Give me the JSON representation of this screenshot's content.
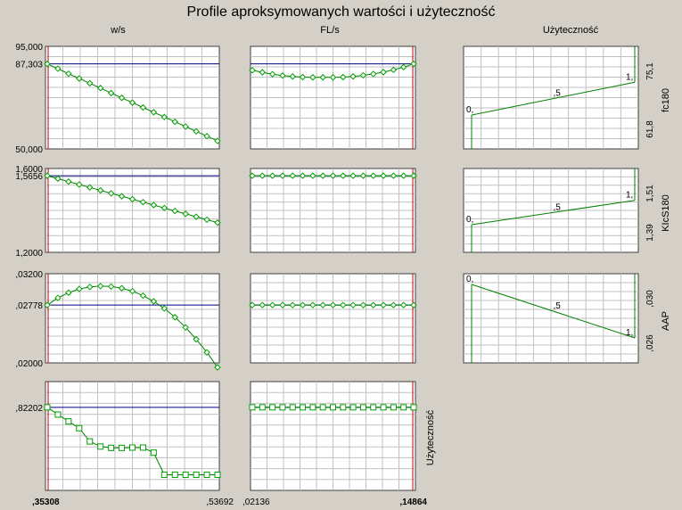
{
  "title": "Profile aproksymowanych wartości i użyteczność",
  "column_headers": [
    "w/s",
    "FL/s",
    "Użyteczność"
  ],
  "bottom_axis": {
    "ws": {
      "min_label": ",35308",
      "max_label": ",53692"
    },
    "fls": {
      "min_label": ",02136",
      "max_label": ",14864"
    }
  },
  "colors": {
    "background": "#d4d0c8",
    "series": "#008000",
    "marker": "#00a000",
    "current_h": "#000080",
    "current_v": "#c00000",
    "grid": "#c0c0c0"
  },
  "chart_data": [
    {
      "type": "line",
      "row": "fc180",
      "column": "w/s",
      "x": [
        0.35308,
        0.36457,
        0.37606,
        0.38755,
        0.39904,
        0.41053,
        0.42202,
        0.43351,
        0.445,
        0.45649,
        0.46798,
        0.47947,
        0.49096,
        0.50245,
        0.51394,
        0.52543,
        0.53692
      ],
      "y": [
        87.303,
        85.2,
        83.0,
        80.9,
        78.8,
        76.7,
        74.5,
        72.4,
        70.3,
        68.2,
        66.1,
        64.0,
        61.9,
        59.8,
        57.7,
        55.6,
        53.5
      ],
      "current": 87.303,
      "ylim": [
        50.0,
        95.0
      ],
      "ytick_labels": [
        "95,000",
        "87,303",
        "50,000"
      ]
    },
    {
      "type": "line",
      "row": "fc180",
      "column": "FL/s",
      "x": [
        0.02136,
        0.02932,
        0.03727,
        0.04523,
        0.05318,
        0.06114,
        0.0691,
        0.07705,
        0.085,
        0.09296,
        0.10091,
        0.10887,
        0.11682,
        0.12478,
        0.13273,
        0.14069,
        0.14864
      ],
      "y": [
        84.5,
        83.6,
        82.8,
        82.2,
        81.8,
        81.5,
        81.4,
        81.4,
        81.4,
        81.5,
        81.8,
        82.3,
        82.9,
        83.7,
        84.7,
        85.9,
        87.303
      ],
      "current": 87.303,
      "ylim": [
        50.0,
        95.0
      ]
    },
    {
      "type": "line",
      "row": "KIcS180",
      "column": "w/s",
      "x": [
        0.35308,
        0.36457,
        0.37606,
        0.38755,
        0.39904,
        0.41053,
        0.42202,
        0.43351,
        0.445,
        0.45649,
        0.46798,
        0.47947,
        0.49096,
        0.50245,
        0.51394,
        0.52543,
        0.53692
      ],
      "y": [
        1.5656,
        1.5516,
        1.5376,
        1.5236,
        1.5096,
        1.4956,
        1.4816,
        1.4676,
        1.4536,
        1.4396,
        1.4256,
        1.4116,
        1.3976,
        1.3836,
        1.3696,
        1.3556,
        1.3416
      ],
      "current": 1.5656,
      "ylim": [
        1.2,
        1.6
      ],
      "ytick_labels": [
        "1,6000",
        "1,5656",
        "1,2000"
      ]
    },
    {
      "type": "line",
      "row": "KIcS180",
      "column": "FL/s",
      "x": [
        0.02136,
        0.02932,
        0.03727,
        0.04523,
        0.05318,
        0.06114,
        0.0691,
        0.07705,
        0.085,
        0.09296,
        0.10091,
        0.10887,
        0.11682,
        0.12478,
        0.13273,
        0.14069,
        0.14864
      ],
      "y": [
        1.5656,
        1.5656,
        1.5656,
        1.5656,
        1.5656,
        1.5656,
        1.5656,
        1.5656,
        1.5656,
        1.5656,
        1.5656,
        1.5656,
        1.5656,
        1.5656,
        1.5656,
        1.5656,
        1.5656
      ],
      "current": 1.5656,
      "ylim": [
        1.2,
        1.6
      ]
    },
    {
      "type": "line",
      "row": "AAP",
      "column": "w/s",
      "x": [
        0.35308,
        0.36457,
        0.37606,
        0.38755,
        0.39904,
        0.41053,
        0.42202,
        0.43351,
        0.445,
        0.45649,
        0.46798,
        0.47947,
        0.49096,
        0.50245,
        0.51394,
        0.52543,
        0.53692
      ],
      "y": [
        0.02778,
        0.02875,
        0.02945,
        0.02995,
        0.03022,
        0.03033,
        0.03028,
        0.03005,
        0.02965,
        0.02905,
        0.02828,
        0.02733,
        0.02615,
        0.02478,
        0.02318,
        0.02142,
        0.0194
      ],
      "current": 0.02778,
      "ylim": [
        0.02,
        0.032
      ],
      "ytick_labels": [
        ",03200",
        ",02778",
        ",02000"
      ]
    },
    {
      "type": "line",
      "row": "AAP",
      "column": "FL/s",
      "x": [
        0.02136,
        0.02932,
        0.03727,
        0.04523,
        0.05318,
        0.06114,
        0.0691,
        0.07705,
        0.085,
        0.09296,
        0.10091,
        0.10887,
        0.11682,
        0.12478,
        0.13273,
        0.14069,
        0.14864
      ],
      "y": [
        0.02778,
        0.02778,
        0.02778,
        0.02778,
        0.02778,
        0.02778,
        0.02778,
        0.02778,
        0.02778,
        0.02778,
        0.02778,
        0.02778,
        0.02778,
        0.02778,
        0.02778,
        0.02778,
        0.02778
      ],
      "current": 0.02778,
      "ylim": [
        0.02,
        0.032
      ]
    },
    {
      "type": "line",
      "row": "Użyteczność",
      "column": "w/s",
      "x": [
        0.35308,
        0.36457,
        0.37606,
        0.38755,
        0.39904,
        0.41053,
        0.42202,
        0.43351,
        0.445,
        0.45649,
        0.46798,
        0.47947,
        0.49096,
        0.50245,
        0.51394,
        0.52543,
        0.53692
      ],
      "y": [
        0.82202,
        0.715,
        0.615,
        0.515,
        0.32,
        0.245,
        0.225,
        0.225,
        0.23,
        0.23,
        0.155,
        -0.17,
        -0.17,
        -0.17,
        -0.17,
        -0.17,
        -0.17
      ],
      "current": 0.82202,
      "ylim": [
        -0.4,
        1.2
      ],
      "ytick_labels": [
        ",82202"
      ]
    },
    {
      "type": "line",
      "row": "Użyteczność",
      "column": "FL/s",
      "x": [
        0.02136,
        0.02932,
        0.03727,
        0.04523,
        0.05318,
        0.06114,
        0.0691,
        0.07705,
        0.085,
        0.09296,
        0.10091,
        0.10887,
        0.11682,
        0.12478,
        0.13273,
        0.14069,
        0.14864
      ],
      "y": [
        0.82202,
        0.82202,
        0.82202,
        0.82202,
        0.82202,
        0.82202,
        0.82202,
        0.82202,
        0.82202,
        0.82202,
        0.82202,
        0.82202,
        0.82202,
        0.82202,
        0.82202,
        0.82202,
        0.82202
      ],
      "current": 0.82202,
      "ylim": [
        -0.4,
        1.2
      ],
      "side_label": "Użyteczność"
    }
  ],
  "desirability": [
    {
      "response": "fc180",
      "low_response": 61.8,
      "high_response": 75.1,
      "d_low": 0.33,
      "d_high": 0.65,
      "tick_labels": [
        "61,8",
        "75,1"
      ],
      "d_labels": [
        "0,",
        ",5",
        "1,"
      ]
    },
    {
      "response": "KIcS180",
      "low_response": 1.39,
      "high_response": 1.51,
      "d_low": 0.33,
      "d_high": 0.62,
      "tick_labels": [
        "1,39",
        "1,51"
      ],
      "d_labels": [
        "0,",
        ",5",
        "1,"
      ]
    },
    {
      "response": "AAP",
      "low_response": 0.026,
      "high_response": 0.03,
      "d_low": 0.88,
      "d_high": 0.28,
      "tick_labels": [
        ",026",
        ",030"
      ],
      "d_labels": [
        "0,",
        ",5",
        "1,"
      ]
    }
  ]
}
